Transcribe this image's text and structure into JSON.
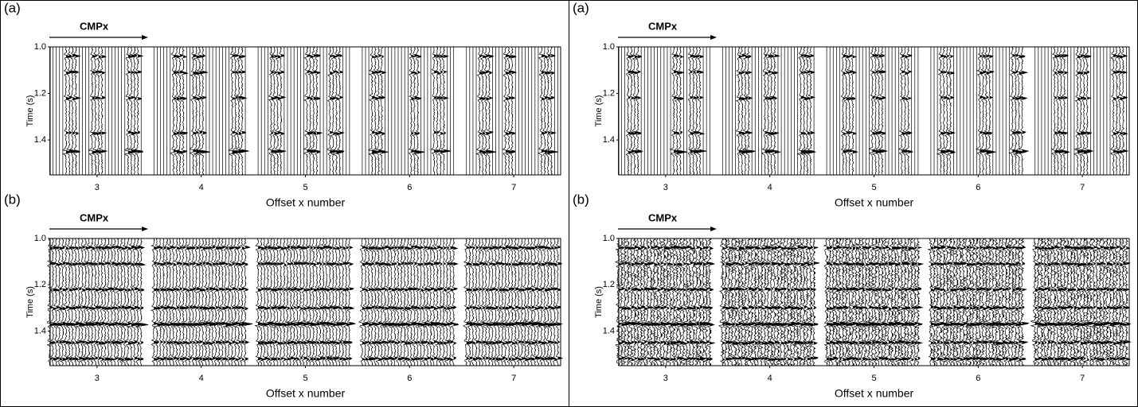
{
  "chart_data": [
    {
      "type": "wiggle",
      "title": "(a)",
      "annotation": "CMPx",
      "ylabel": "Time (s)",
      "xlabel": "Offset x number",
      "ylim": [
        1.0,
        1.55
      ],
      "yticks": [
        {
          "value": 1.0,
          "label": "1.0"
        },
        {
          "value": 1.2,
          "label": "1.2"
        },
        {
          "value": 1.4,
          "label": "1.4"
        }
      ],
      "xlim": [
        2.55,
        7.45
      ],
      "xticks": [
        3,
        4,
        5,
        6,
        7
      ],
      "reflections": [
        1.04,
        1.11,
        1.22,
        1.37,
        1.45
      ],
      "decimated": true
    },
    {
      "type": "wiggle",
      "title": "(b)",
      "annotation": "CMPx",
      "ylabel": "Time (s)",
      "xlabel": "Offset x number",
      "ylim": [
        1.0,
        1.55
      ],
      "yticks": [
        {
          "value": 1.0,
          "label": "1.0"
        },
        {
          "value": 1.2,
          "label": "1.2"
        },
        {
          "value": 1.4,
          "label": "1.4"
        }
      ],
      "xlim": [
        2.55,
        7.45
      ],
      "xticks": [
        3,
        4,
        5,
        6,
        7
      ],
      "reflections": [
        1.04,
        1.11,
        1.22,
        1.3,
        1.37,
        1.45,
        1.52
      ],
      "decimated": false
    },
    {
      "type": "wiggle",
      "title": "(a)",
      "annotation": "CMPx",
      "ylabel": "Time (s)",
      "xlabel": "Offset x number",
      "ylim": [
        1.0,
        1.55
      ],
      "yticks": [
        {
          "value": 1.0,
          "label": "1.0"
        },
        {
          "value": 1.2,
          "label": "1.2"
        },
        {
          "value": 1.4,
          "label": "1.4"
        }
      ],
      "xlim": [
        2.55,
        7.45
      ],
      "xticks": [
        3,
        4,
        5,
        6,
        7
      ],
      "reflections": [
        1.04,
        1.11,
        1.22,
        1.37,
        1.45
      ],
      "decimated": true
    },
    {
      "type": "wiggle",
      "title": "(b)",
      "annotation": "CMPx",
      "ylabel": "Time (s)",
      "xlabel": "Offset x number",
      "ylim": [
        1.0,
        1.55
      ],
      "yticks": [
        {
          "value": 1.0,
          "label": "1.0"
        },
        {
          "value": 1.2,
          "label": "1.2"
        },
        {
          "value": 1.4,
          "label": "1.4"
        }
      ],
      "xlim": [
        2.55,
        7.45
      ],
      "xticks": [
        3,
        4,
        5,
        6,
        7
      ],
      "reflections": [
        1.04,
        1.11,
        1.22,
        1.3,
        1.37,
        1.45,
        1.52
      ],
      "decimated": false
    }
  ]
}
